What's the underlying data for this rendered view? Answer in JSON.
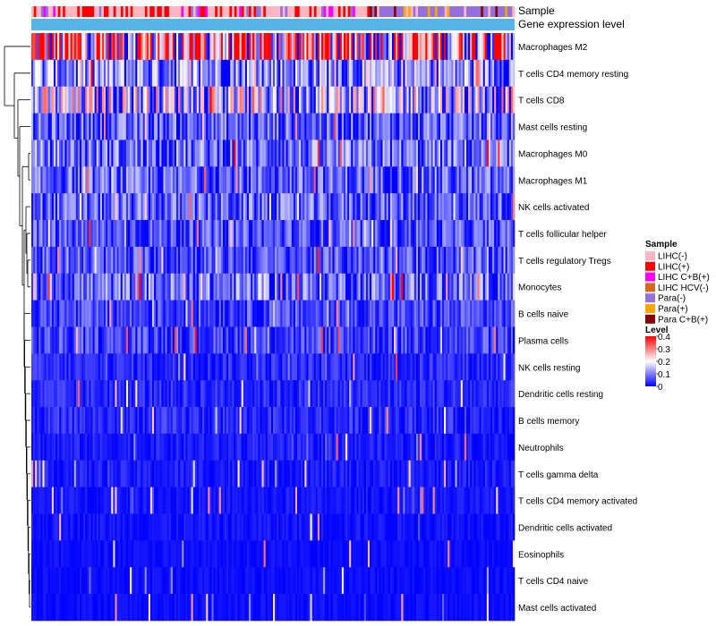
{
  "chart_data": {
    "type": "heatmap",
    "title": "",
    "annotation_tracks": [
      "Sample",
      "Gene expression level"
    ],
    "rows": [
      {
        "name": "Macrophages M2",
        "mean": 0.26
      },
      {
        "name": "T cells CD4 memory resting",
        "mean": 0.11
      },
      {
        "name": "T cells CD8",
        "mean": 0.15
      },
      {
        "name": "Mast cells resting",
        "mean": 0.07
      },
      {
        "name": "Macrophages M0",
        "mean": 0.08
      },
      {
        "name": "Macrophages M1",
        "mean": 0.07
      },
      {
        "name": "NK cells activated",
        "mean": 0.07
      },
      {
        "name": "T cells follicular helper",
        "mean": 0.06
      },
      {
        "name": "T cells regulatory  Tregs",
        "mean": 0.06
      },
      {
        "name": "Monocytes",
        "mean": 0.08
      },
      {
        "name": "B cells naive",
        "mean": 0.05
      },
      {
        "name": "Plasma cells",
        "mean": 0.05
      },
      {
        "name": "NK cells resting",
        "mean": 0.03
      },
      {
        "name": "Dendritic cells resting",
        "mean": 0.03
      },
      {
        "name": "B cells memory",
        "mean": 0.03
      },
      {
        "name": "Neutrophils",
        "mean": 0.02
      },
      {
        "name": "T cells gamma delta",
        "mean": 0.02
      },
      {
        "name": "T cells CD4 memory activated",
        "mean": 0.015
      },
      {
        "name": "Dendritic cells activated",
        "mean": 0.015
      },
      {
        "name": "Eosinophils",
        "mean": 0.01
      },
      {
        "name": "T cells CD4 naive",
        "mean": 0.01
      },
      {
        "name": "Mast cells activated",
        "mean": 0.01
      }
    ],
    "sample_legend": {
      "title": "Sample",
      "entries": [
        {
          "label": "LIHC(-)",
          "color": "#FFB6C1"
        },
        {
          "label": "LIHC(+)",
          "color": "#FF0000"
        },
        {
          "label": "LIHC C+B(+)",
          "color": "#FF00FF"
        },
        {
          "label": "LIHC HCV(-)",
          "color": "#D2691E"
        },
        {
          "label": "Para(-)",
          "color": "#9370DB"
        },
        {
          "label": "Para(+)",
          "color": "#FFA500"
        },
        {
          "label": "Para C+B(+)",
          "color": "#8B0000"
        }
      ]
    },
    "level_legend": {
      "title": "Level",
      "ticks": [
        "0.4",
        "0.3",
        "0.2",
        "0.1",
        "0"
      ],
      "range": [
        0,
        0.4
      ]
    },
    "expression_color": "#56B4E9",
    "scale_colors": {
      "low": "#0000FF",
      "mid": "#FFFFFF",
      "high": "#FF0000"
    }
  }
}
